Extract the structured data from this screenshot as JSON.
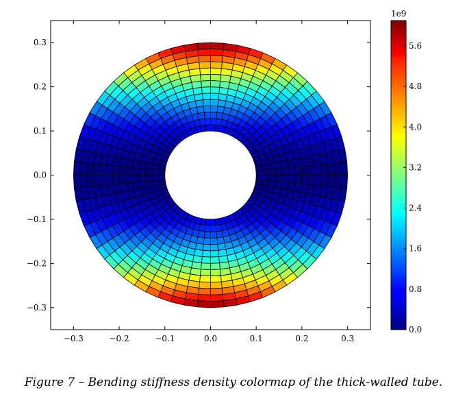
{
  "caption": "Figure 7 – Bending stiffness density colormap of the thick-walled tube.",
  "chart_data": {
    "type": "heatmap",
    "geometry": "annulus",
    "inner_radius": 0.1,
    "outer_radius": 0.3,
    "radial_divisions": 14,
    "angular_divisions": 64,
    "field": "value ∝ y²",
    "value_max": 6100000000.0,
    "xlim": [
      -0.35,
      0.35
    ],
    "ylim": [
      -0.35,
      0.35
    ],
    "x_ticks": [
      "−0.3",
      "−0.2",
      "−0.1",
      "0.0",
      "0.1",
      "0.2",
      "0.3"
    ],
    "x_tick_values": [
      -0.3,
      -0.2,
      -0.1,
      0.0,
      0.1,
      0.2,
      0.3
    ],
    "y_ticks": [
      "0.3",
      "0.2",
      "0.1",
      "0.0",
      "−0.1",
      "−0.2",
      "−0.3"
    ],
    "y_tick_values": [
      0.3,
      0.2,
      0.1,
      0.0,
      -0.1,
      -0.2,
      -0.3
    ],
    "colorbar": {
      "exponent_label": "1e9",
      "ticks": [
        "5.6",
        "4.8",
        "4.0",
        "3.2",
        "2.4",
        "1.6",
        "0.8",
        "0.0"
      ],
      "tick_values": [
        5.6,
        4.8,
        4.0,
        3.2,
        2.4,
        1.6,
        0.8,
        0.0
      ],
      "range": [
        0.0,
        6.1
      ],
      "colormap": "jet"
    }
  }
}
